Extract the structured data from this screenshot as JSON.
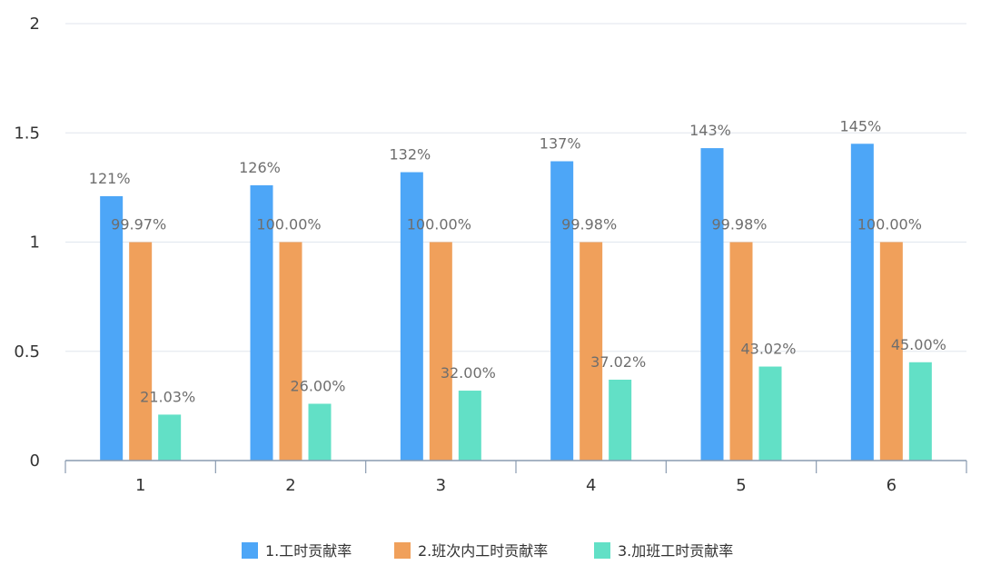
{
  "chart_data": {
    "type": "bar",
    "categories": [
      "1",
      "2",
      "3",
      "4",
      "5",
      "6"
    ],
    "yticks": [
      "0",
      "0.5",
      "1",
      "1.5",
      "2"
    ],
    "ylim": [
      0,
      2
    ],
    "grid": true,
    "legend_position": "bottom",
    "series": [
      {
        "name": "1.工时贡献率",
        "color": "#4da6f7",
        "values": [
          1.21,
          1.26,
          1.32,
          1.37,
          1.43,
          1.45
        ],
        "labels": [
          "121%",
          "126%",
          "132%",
          "137%",
          "143%",
          "145%"
        ]
      },
      {
        "name": "2.班次内工时贡献率",
        "color": "#f0a05b",
        "values": [
          0.9997,
          1.0,
          1.0,
          0.9998,
          0.9998,
          1.0
        ],
        "labels": [
          "99.97%",
          "100.00%",
          "100.00%",
          "99.98%",
          "99.98%",
          "100.00%"
        ]
      },
      {
        "name": "3.加班工时贡献率",
        "color": "#62e0c6",
        "values": [
          0.2103,
          0.26,
          0.32,
          0.3702,
          0.4302,
          0.45
        ],
        "labels": [
          "21.03%",
          "26.00%",
          "32.00%",
          "37.02%",
          "43.02%",
          "45.00%"
        ]
      }
    ]
  }
}
